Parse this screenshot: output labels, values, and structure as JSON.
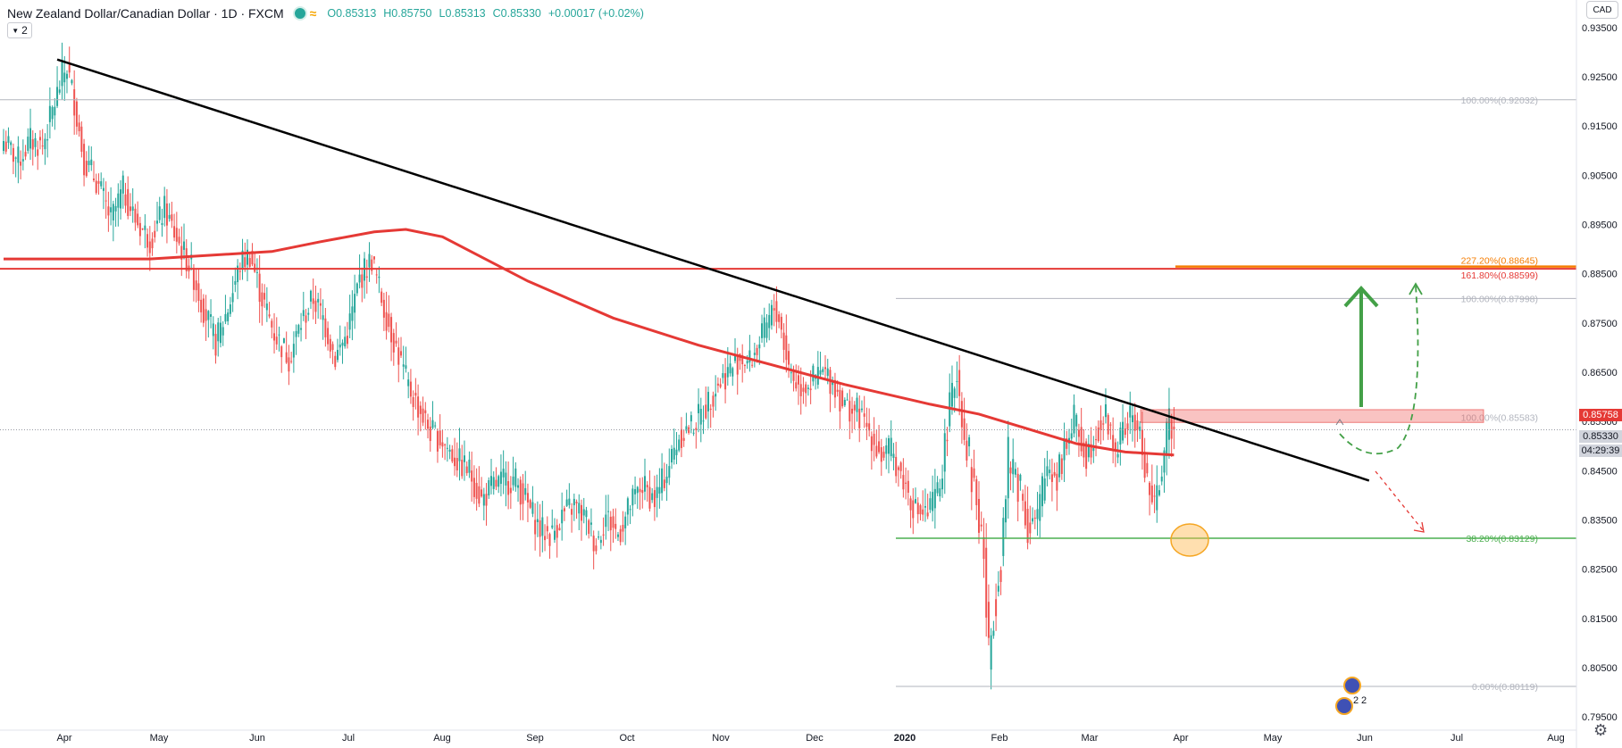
{
  "header": {
    "title": "New Zealand Dollar/Canadian Dollar · 1D · FXCM",
    "open": "O0.85313",
    "high": "H0.85750",
    "low": "L0.85313",
    "close": "C0.85330",
    "change": "+0.00017 (+0.02%)",
    "indicator_count": "2",
    "currency": "CAD"
  },
  "price_tags": {
    "high_tag": "0.85758",
    "last_price": "0.85330",
    "countdown": "04:29:39"
  },
  "colors": {
    "up": "#26a69a",
    "down": "#ef5350",
    "ma": "#e53935",
    "resistance": "#e53935",
    "trendline": "#000000",
    "fib_grey": "#b2b5be",
    "fib_support": "#4caf50",
    "arrow_up": "#43a047",
    "extension": "#f57c00"
  },
  "chart_data": {
    "type": "candlestick",
    "symbol": "NZDCAD",
    "timeframe": "1D",
    "x_ticks": [
      "Apr",
      "May",
      "Jun",
      "Jul",
      "Aug",
      "Sep",
      "Oct",
      "Nov",
      "Dec",
      "2020",
      "Feb",
      "Mar",
      "Apr",
      "May",
      "Jun",
      "Jul",
      "Aug"
    ],
    "y_ticks": [
      "0.93500",
      "0.92500",
      "0.91500",
      "0.90500",
      "0.89500",
      "0.88500",
      "0.87500",
      "0.86500",
      "0.85500",
      "0.84500",
      "0.83500",
      "0.82500",
      "0.81500",
      "0.80500",
      "0.79500"
    ],
    "ylim": [
      0.7925,
      0.9375
    ],
    "candles_close_path": [
      [
        0,
        0.912
      ],
      [
        6,
        0.908
      ],
      [
        11,
        0.912
      ],
      [
        16,
        0.911
      ],
      [
        20,
        0.918
      ],
      [
        24,
        0.925
      ],
      [
        26,
        0.927
      ],
      [
        29,
        0.92
      ],
      [
        33,
        0.908
      ],
      [
        38,
        0.904
      ],
      [
        44,
        0.896
      ],
      [
        49,
        0.902
      ],
      [
        54,
        0.896
      ],
      [
        60,
        0.892
      ],
      [
        66,
        0.898
      ],
      [
        72,
        0.891
      ],
      [
        77,
        0.886
      ],
      [
        82,
        0.878
      ],
      [
        87,
        0.871
      ],
      [
        92,
        0.878
      ],
      [
        97,
        0.887
      ],
      [
        101,
        0.889
      ],
      [
        106,
        0.88
      ],
      [
        111,
        0.873
      ],
      [
        117,
        0.868
      ],
      [
        122,
        0.875
      ],
      [
        127,
        0.88
      ],
      [
        131,
        0.876
      ],
      [
        136,
        0.868
      ],
      [
        141,
        0.873
      ],
      [
        146,
        0.884
      ],
      [
        151,
        0.888
      ],
      [
        156,
        0.878
      ],
      [
        161,
        0.87
      ],
      [
        166,
        0.862
      ],
      [
        171,
        0.857
      ],
      [
        175,
        0.853
      ],
      [
        180,
        0.851
      ],
      [
        186,
        0.847
      ],
      [
        191,
        0.845
      ],
      [
        196,
        0.839
      ],
      [
        201,
        0.842
      ],
      [
        206,
        0.843
      ],
      [
        210,
        0.843
      ],
      [
        215,
        0.838
      ],
      [
        220,
        0.833
      ],
      [
        225,
        0.832
      ],
      [
        229,
        0.836
      ],
      [
        234,
        0.838
      ],
      [
        239,
        0.835
      ],
      [
        243,
        0.83
      ],
      [
        247,
        0.836
      ],
      [
        252,
        0.832
      ],
      [
        257,
        0.838
      ],
      [
        262,
        0.842
      ],
      [
        267,
        0.839
      ],
      [
        272,
        0.845
      ],
      [
        277,
        0.852
      ],
      [
        282,
        0.854
      ],
      [
        287,
        0.857
      ],
      [
        292,
        0.862
      ],
      [
        297,
        0.865
      ],
      [
        302,
        0.868
      ],
      [
        306,
        0.867
      ],
      [
        311,
        0.872
      ],
      [
        316,
        0.878
      ],
      [
        318,
        0.876
      ],
      [
        322,
        0.866
      ],
      [
        326,
        0.862
      ],
      [
        331,
        0.863
      ],
      [
        336,
        0.865
      ],
      [
        340,
        0.863
      ],
      [
        345,
        0.858
      ],
      [
        350,
        0.857
      ],
      [
        355,
        0.853
      ],
      [
        360,
        0.848
      ],
      [
        364,
        0.849
      ],
      [
        369,
        0.843
      ],
      [
        374,
        0.837
      ],
      [
        379,
        0.836
      ],
      [
        384,
        0.842
      ],
      [
        388,
        0.858
      ],
      [
        391,
        0.865
      ],
      [
        394,
        0.852
      ],
      [
        398,
        0.842
      ],
      [
        402,
        0.828
      ],
      [
        404,
        0.806
      ],
      [
        406,
        0.818
      ],
      [
        409,
        0.828
      ],
      [
        412,
        0.846
      ],
      [
        416,
        0.844
      ],
      [
        420,
        0.835
      ],
      [
        424,
        0.834
      ],
      [
        428,
        0.846
      ],
      [
        432,
        0.845
      ],
      [
        436,
        0.852
      ],
      [
        440,
        0.854
      ],
      [
        444,
        0.848
      ],
      [
        448,
        0.853
      ],
      [
        452,
        0.856
      ],
      [
        456,
        0.849
      ],
      [
        460,
        0.854
      ],
      [
        463,
        0.856
      ],
      [
        466,
        0.852
      ],
      [
        469,
        0.843
      ],
      [
        472,
        0.837
      ],
      [
        475,
        0.846
      ],
      [
        478,
        0.855
      ],
      [
        480,
        0.8533
      ]
    ],
    "ma200_path": [
      [
        0,
        0.888
      ],
      [
        60,
        0.888
      ],
      [
        110,
        0.8895
      ],
      [
        130,
        0.8915
      ],
      [
        152,
        0.8935
      ],
      [
        165,
        0.894
      ],
      [
        180,
        0.8925
      ],
      [
        215,
        0.8835
      ],
      [
        250,
        0.876
      ],
      [
        285,
        0.8705
      ],
      [
        315,
        0.8665
      ],
      [
        345,
        0.8625
      ],
      [
        380,
        0.8585
      ],
      [
        400,
        0.8565
      ],
      [
        420,
        0.8535
      ],
      [
        440,
        0.8505
      ],
      [
        460,
        0.8488
      ],
      [
        480,
        0.8482
      ]
    ],
    "annotations": {
      "fib_levels": [
        {
          "label": "100.00%(0.92032)",
          "price": 0.92032
        },
        {
          "label": "227.20%(0.88645)",
          "price": 0.88645
        },
        {
          "label": "161.80%(0.88599)",
          "price": 0.88599
        },
        {
          "label": "100.00%(0.87998)",
          "price": 0.87998
        },
        {
          "label": "100.00%(0.85583)",
          "price": 0.85583
        },
        {
          "label": "38.20%(0.83129)",
          "price": 0.83129
        },
        {
          "label": "0.00%(0.80119)",
          "price": 0.80119
        }
      ],
      "resistance_price": 0.886,
      "trendline": {
        "from": [
          22,
          0.9285
        ],
        "to": [
          560,
          0.843
        ]
      },
      "resistance_zone": [
        0.8548,
        0.8574
      ]
    },
    "markers": {
      "event_counts": [
        "2",
        "2"
      ]
    }
  }
}
